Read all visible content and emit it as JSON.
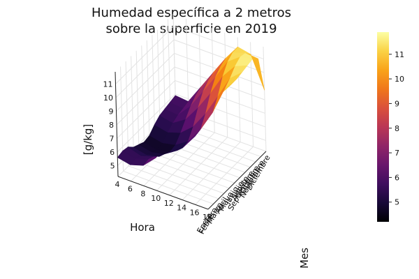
{
  "chart_data": {
    "type": "surface3d",
    "title_lines": [
      "Humedad específica a 2 metros",
      "sobre la superficie en 2019"
    ],
    "xlabel": "Hora",
    "ylabel": "Mes",
    "zlabel": "[g/kg]",
    "x_ticks": [
      "4",
      "6",
      "8",
      "10",
      "12",
      "14",
      "16",
      "18"
    ],
    "z_ticks": [
      "5",
      "6",
      "7",
      "8",
      "9",
      "10",
      "11"
    ],
    "y_ticks": [
      "Enero",
      "Febrero",
      "Marzo",
      "Abril",
      "Mayo",
      "Junio",
      "Julio",
      "Agosto",
      "Septiembre",
      "Octubre",
      "Noviembre",
      "Diciembre"
    ],
    "colorbar_ticks": [
      "5",
      "6",
      "7",
      "8",
      "9",
      "10",
      "11"
    ],
    "colorbar_range": [
      4.2,
      11.9
    ],
    "colormap": "inferno",
    "grid": true,
    "x_range": [
      4,
      18
    ],
    "z_range": [
      4.2,
      11.9
    ],
    "hours": [
      4,
      6,
      8,
      10,
      12,
      14,
      16,
      18
    ],
    "surface": [
      [
        5.6,
        5.7,
        5.6,
        5.2,
        5.0,
        4.8,
        4.9,
        5.3,
        5.6,
        5.7,
        5.8,
        5.9
      ],
      [
        5.4,
        5.5,
        5.3,
        5.0,
        4.8,
        4.6,
        4.7,
        5.1,
        5.4,
        5.6,
        5.7,
        5.8
      ],
      [
        5.7,
        5.8,
        5.6,
        5.2,
        5.0,
        4.8,
        4.9,
        5.4,
        6.0,
        6.6,
        7.0,
        7.2
      ],
      [
        6.6,
        6.7,
        6.4,
        6.0,
        5.6,
        5.4,
        5.5,
        6.2,
        7.2,
        8.0,
        8.4,
        8.6
      ],
      [
        8.0,
        8.1,
        7.8,
        7.2,
        6.8,
        6.6,
        6.7,
        7.5,
        8.6,
        9.4,
        9.8,
        10.0
      ],
      [
        9.6,
        9.8,
        9.4,
        8.8,
        8.4,
        8.2,
        8.3,
        9.1,
        10.2,
        10.9,
        11.2,
        11.2
      ],
      [
        10.6,
        10.9,
        10.8,
        10.6,
        10.4,
        10.3,
        10.4,
        10.8,
        11.3,
        11.6,
        11.5,
        11.0
      ],
      [
        11.0,
        11.3,
        11.8,
        11.8,
        11.6,
        11.5,
        11.5,
        11.6,
        11.7,
        11.8,
        11.4,
        8.7
      ]
    ]
  }
}
